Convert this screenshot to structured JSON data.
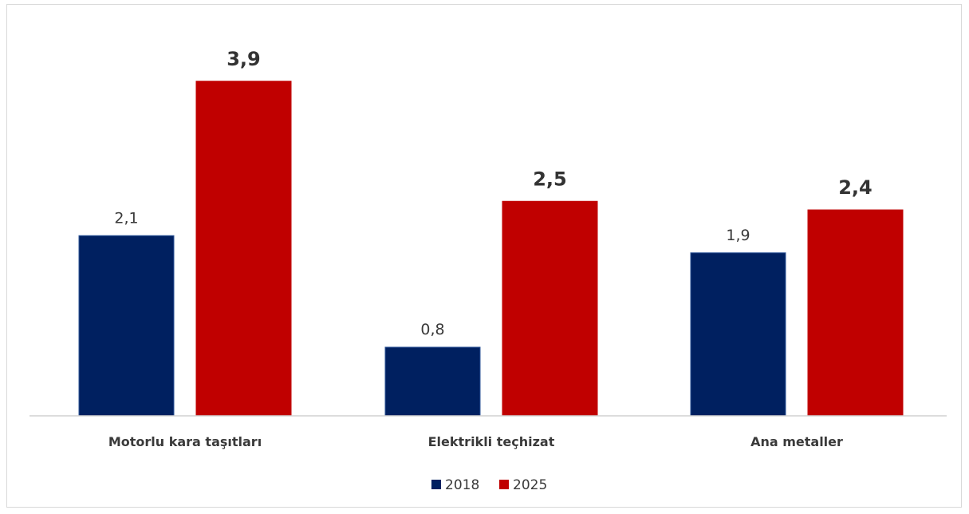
{
  "chart_data": {
    "type": "bar",
    "categories": [
      "Motorlu kara taşıtları",
      "Elektrikli teçhizat",
      "Ana metaller"
    ],
    "series": [
      {
        "name": "2018",
        "values": [
          2.1,
          0.8,
          1.9
        ],
        "labels": [
          "2,1",
          "0,8",
          "1,9"
        ],
        "color": "#002060"
      },
      {
        "name": "2025",
        "values": [
          3.9,
          2.5,
          2.4
        ],
        "labels": [
          "3,9",
          "2,5",
          "2,4"
        ],
        "color": "#c00000"
      }
    ],
    "title": "",
    "xlabel": "",
    "ylabel": "",
    "ylim": [
      0,
      4.2
    ],
    "grid": false,
    "legend": "bottom"
  }
}
